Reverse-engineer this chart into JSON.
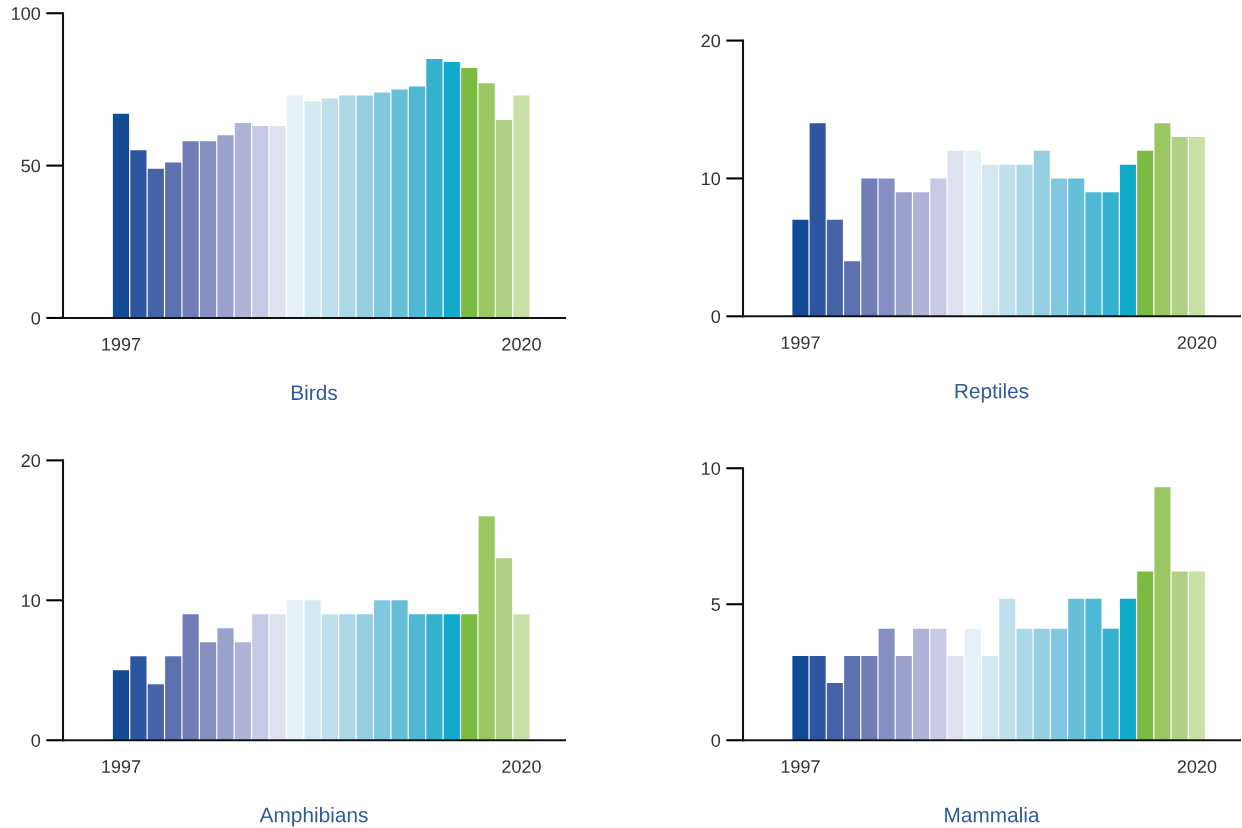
{
  "chart_data": [
    {
      "type": "bar",
      "xlabel": "Birds",
      "categories": [
        "1997",
        null,
        null,
        null,
        null,
        null,
        null,
        null,
        null,
        null,
        null,
        null,
        null,
        null,
        null,
        null,
        null,
        null,
        null,
        null,
        null,
        null,
        null,
        "2020"
      ],
      "values": [
        67,
        55,
        49,
        51,
        58,
        58,
        60,
        64,
        63,
        63,
        73,
        71,
        72,
        73,
        73,
        74,
        75,
        76,
        85,
        84,
        82,
        77,
        65,
        73
      ],
      "colors": [
        "#134a96",
        "#2d56a0",
        "#4763a8",
        "#5d70b0",
        "#717db6",
        "#858fc1",
        "#9aa1cc",
        "#aeb3d7",
        "#c6cae4",
        "#dfe3ef",
        "#e6f2f7",
        "#d2e9f1",
        "#bfe0ec",
        "#aad8e7",
        "#97cfe2",
        "#80c8df",
        "#67bed8",
        "#4fb8d6",
        "#33b1cf",
        "#10abca",
        "#7cbb42",
        "#9ac762",
        "#aed186",
        "#c8e0a8"
      ],
      "ylim": [
        0,
        100
      ],
      "yticks": [
        0,
        50,
        100
      ],
      "grid": false
    },
    {
      "type": "bar",
      "xlabel": "Reptiles",
      "categories": [
        "1997",
        null,
        null,
        null,
        null,
        null,
        null,
        null,
        null,
        null,
        null,
        null,
        null,
        null,
        null,
        null,
        null,
        null,
        null,
        null,
        null,
        null,
        null,
        "2020"
      ],
      "values": [
        7,
        14,
        7,
        4,
        10,
        10,
        9,
        9,
        10,
        12,
        12,
        11,
        11,
        11,
        12,
        10,
        10,
        9,
        9,
        11,
        12,
        14,
        13,
        13
      ],
      "colors": [
        "#134a96",
        "#2d56a0",
        "#4763a8",
        "#5d70b0",
        "#717db6",
        "#858fc1",
        "#9aa1cc",
        "#aeb3d7",
        "#c6cae4",
        "#dfe3ef",
        "#e6f2f7",
        "#d2e9f1",
        "#bfe0ec",
        "#aad8e7",
        "#97cfe2",
        "#80c8df",
        "#67bed8",
        "#4fb8d6",
        "#33b1cf",
        "#10abca",
        "#7cbb42",
        "#9ac762",
        "#aed186",
        "#c8e0a8"
      ],
      "ylim": [
        0,
        20
      ],
      "yticks": [
        0,
        10,
        20
      ],
      "grid": false
    },
    {
      "type": "bar",
      "xlabel": "Amphibians",
      "categories": [
        "1997",
        null,
        null,
        null,
        null,
        null,
        null,
        null,
        null,
        null,
        null,
        null,
        null,
        null,
        null,
        null,
        null,
        null,
        null,
        null,
        null,
        null,
        null,
        "2020"
      ],
      "values": [
        5,
        6,
        4,
        6,
        9,
        7,
        8,
        7,
        9,
        9,
        10,
        10,
        9,
        9,
        9,
        10,
        10,
        9,
        9,
        9,
        9,
        16,
        13,
        9
      ],
      "colors": [
        "#134a96",
        "#2d56a0",
        "#4763a8",
        "#5d70b0",
        "#717db6",
        "#858fc1",
        "#9aa1cc",
        "#aeb3d7",
        "#c6cae4",
        "#dfe3ef",
        "#e6f2f7",
        "#d2e9f1",
        "#bfe0ec",
        "#aad8e7",
        "#97cfe2",
        "#80c8df",
        "#67bed8",
        "#4fb8d6",
        "#33b1cf",
        "#10abca",
        "#7cbb42",
        "#9ac762",
        "#aed186",
        "#c8e0a8"
      ],
      "ylim": [
        0,
        20
      ],
      "yticks": [
        0,
        10,
        20
      ],
      "grid": false
    },
    {
      "type": "bar",
      "xlabel": "Mammalia",
      "categories": [
        "1997",
        null,
        null,
        null,
        null,
        null,
        null,
        null,
        null,
        null,
        null,
        null,
        null,
        null,
        null,
        null,
        null,
        null,
        null,
        null,
        null,
        null,
        null,
        "2020"
      ],
      "values": [
        3.1,
        3.1,
        2.1,
        3.1,
        3.1,
        4.1,
        3.1,
        4.1,
        4.1,
        3.1,
        4.1,
        3.1,
        5.2,
        4.1,
        4.1,
        4.1,
        5.2,
        5.2,
        4.1,
        5.2,
        6.2,
        9.3,
        6.2,
        6.2
      ],
      "colors": [
        "#134a96",
        "#2d56a0",
        "#4763a8",
        "#5d70b0",
        "#717db6",
        "#858fc1",
        "#9aa1cc",
        "#aeb3d7",
        "#c6cae4",
        "#dfe3ef",
        "#e6f2f7",
        "#d2e9f1",
        "#bfe0ec",
        "#aad8e7",
        "#97cfe2",
        "#80c8df",
        "#67bed8",
        "#4fb8d6",
        "#33b1cf",
        "#10abca",
        "#7cbb42",
        "#9ac762",
        "#aed186",
        "#c8e0a8"
      ],
      "ylim": [
        0,
        10
      ],
      "yticks": [
        0,
        5,
        10
      ],
      "grid": false
    }
  ]
}
